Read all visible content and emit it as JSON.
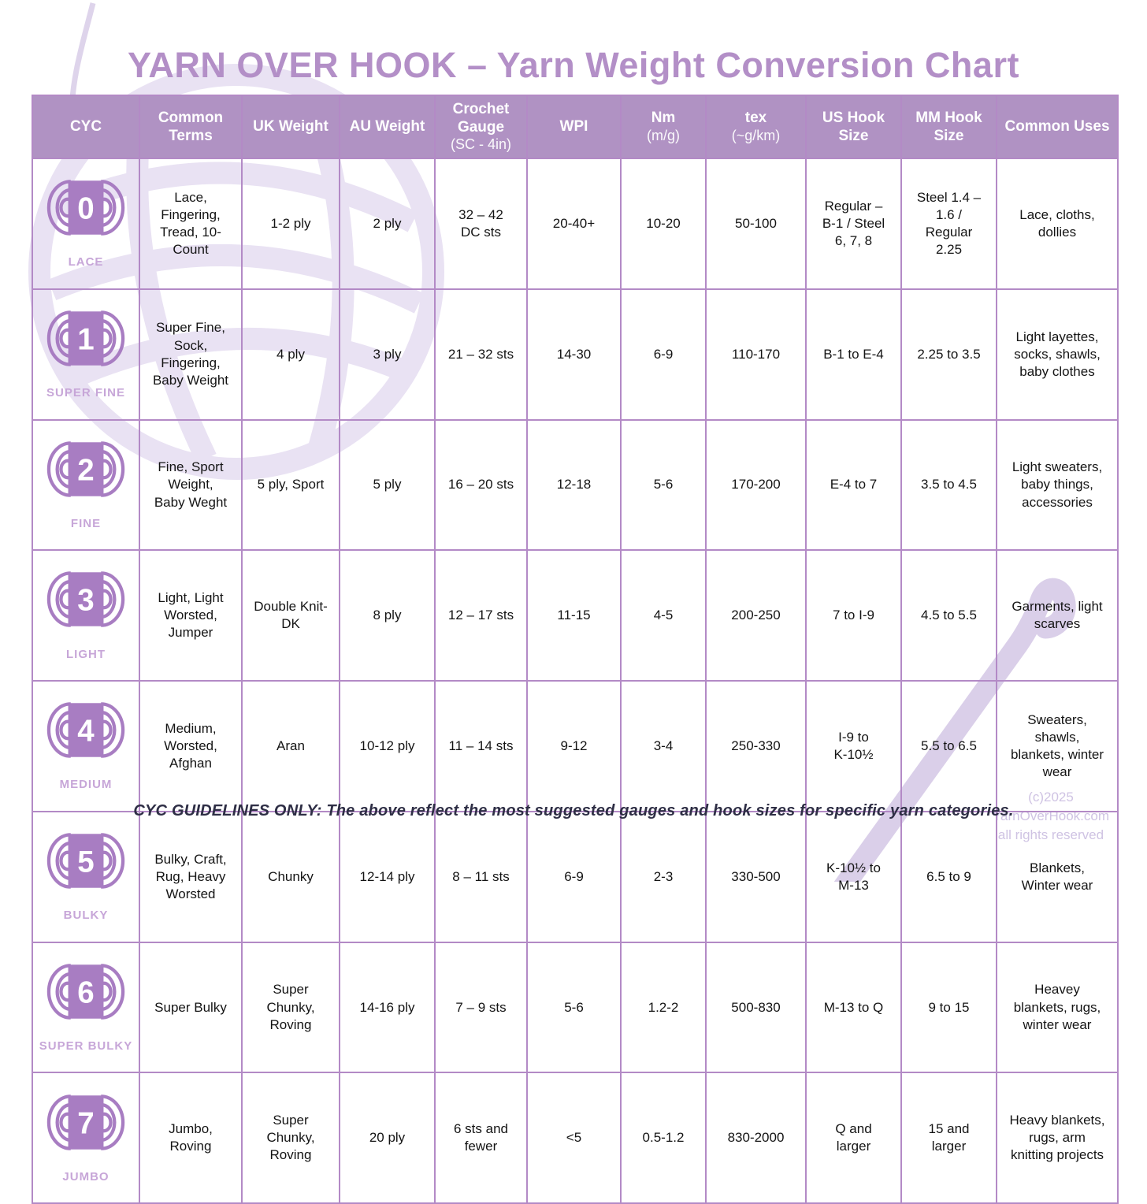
{
  "title": "YARN OVER HOOK – Yarn Weight Conversion Chart",
  "footer_note": "CYC GUIDELINES ONLY: The above reflect the most suggested gauges and hook sizes for specific yarn categories.",
  "copyright": {
    "line1": "(c)2025",
    "line2": "YarnOverHook.com",
    "line3": "all rights reserved"
  },
  "colors": {
    "header_band": "#b092c3",
    "table_border": "#b38ac6",
    "icon_purple": "#a87dc2",
    "title_purple": "#b38fc7",
    "category_label_purple": "#c7a6d8",
    "watermark_lavender": "#e8e1f2",
    "cell_text": "#141414"
  },
  "icons": {
    "row_icon": "yarn-skein-icon",
    "background": [
      "yarn-ball-watermark",
      "yarn-strand-watermark",
      "crochet-hook-watermark"
    ]
  },
  "columns": [
    {
      "label": "CYC",
      "sublabel": ""
    },
    {
      "label": "Common Terms",
      "sublabel": ""
    },
    {
      "label": "UK Weight",
      "sublabel": ""
    },
    {
      "label": "AU Weight",
      "sublabel": ""
    },
    {
      "label": "Crochet Gauge",
      "sublabel": "(SC - 4in)"
    },
    {
      "label": "WPI",
      "sublabel": ""
    },
    {
      "label": "Nm",
      "sublabel": "(m/g)"
    },
    {
      "label": "tex",
      "sublabel": "(~g/km)"
    },
    {
      "label": "US Hook Size",
      "sublabel": ""
    },
    {
      "label": "MM Hook Size",
      "sublabel": ""
    },
    {
      "label": "Common Uses",
      "sublabel": ""
    }
  ],
  "rows": [
    {
      "cyc_number": "0",
      "cyc_label": "LACE",
      "common_terms": "Lace,\nFingering,\nTread, 10-\nCount",
      "uk_weight": "1-2 ply",
      "au_weight": "2 ply",
      "crochet_gauge": "32 – 42\nDC sts",
      "wpi": "20-40+",
      "nm": "10-20",
      "tex": "50-100",
      "us_hook": "Regular –\nB-1 / Steel\n6, 7, 8",
      "mm_hook": "Steel 1.4 –\n1.6 /\nRegular\n2.25",
      "common_uses": "Lace, cloths,\ndollies"
    },
    {
      "cyc_number": "1",
      "cyc_label": "SUPER FINE",
      "common_terms": "Super Fine,\nSock,\nFingering,\nBaby Weight",
      "uk_weight": "4 ply",
      "au_weight": "3 ply",
      "crochet_gauge": "21 – 32 sts",
      "wpi": "14-30",
      "nm": "6-9",
      "tex": "110-170",
      "us_hook": "B-1 to E-4",
      "mm_hook": "2.25 to 3.5",
      "common_uses": "Light layettes,\nsocks, shawls,\nbaby clothes"
    },
    {
      "cyc_number": "2",
      "cyc_label": "FINE",
      "common_terms": "Fine, Sport\nWeight,\nBaby Weght",
      "uk_weight": "5 ply, Sport",
      "au_weight": "5 ply",
      "crochet_gauge": "16 – 20 sts",
      "wpi": "12-18",
      "nm": "5-6",
      "tex": "170-200",
      "us_hook": "E-4 to 7",
      "mm_hook": "3.5 to 4.5",
      "common_uses": "Light sweaters,\nbaby things,\naccessories"
    },
    {
      "cyc_number": "3",
      "cyc_label": "LIGHT",
      "common_terms": "Light, Light\nWorsted,\nJumper",
      "uk_weight": "Double Knit-\nDK",
      "au_weight": "8 ply",
      "crochet_gauge": "12 – 17 sts",
      "wpi": "11-15",
      "nm": "4-5",
      "tex": "200-250",
      "us_hook": "7 to I-9",
      "mm_hook": "4.5 to 5.5",
      "common_uses": "Garments, light\nscarves"
    },
    {
      "cyc_number": "4",
      "cyc_label": "MEDIUM",
      "common_terms": "Medium,\nWorsted,\nAfghan",
      "uk_weight": "Aran",
      "au_weight": "10-12 ply",
      "crochet_gauge": "11 – 14 sts",
      "wpi": "9-12",
      "nm": "3-4",
      "tex": "250-330",
      "us_hook": "I-9 to\nK-10½",
      "mm_hook": "5.5 to 6.5",
      "common_uses": "Sweaters,\nshawls,\nblankets, winter\nwear"
    },
    {
      "cyc_number": "5",
      "cyc_label": "BULKY",
      "common_terms": "Bulky, Craft,\nRug, Heavy\nWorsted",
      "uk_weight": "Chunky",
      "au_weight": "12-14 ply",
      "crochet_gauge": "8 – 11 sts",
      "wpi": "6-9",
      "nm": "2-3",
      "tex": "330-500",
      "us_hook": "K-10½ to\nM-13",
      "mm_hook": "6.5 to 9",
      "common_uses": "Blankets,\nWinter wear"
    },
    {
      "cyc_number": "6",
      "cyc_label": "SUPER BULKY",
      "common_terms": "Super Bulky",
      "uk_weight": "Super\nChunky,\nRoving",
      "au_weight": "14-16 ply",
      "crochet_gauge": "7 – 9 sts",
      "wpi": "5-6",
      "nm": "1.2-2",
      "tex": "500-830",
      "us_hook": "M-13 to Q",
      "mm_hook": "9 to 15",
      "common_uses": "Heavey\nblankets, rugs,\nwinter wear"
    },
    {
      "cyc_number": "7",
      "cyc_label": "JUMBO",
      "common_terms": "Jumbo,\nRoving",
      "uk_weight": "Super\nChunky,\nRoving",
      "au_weight": "20 ply",
      "crochet_gauge": "6 sts and\nfewer",
      "wpi": "<5",
      "nm": "0.5-1.2",
      "tex": "830-2000",
      "us_hook": "Q and\nlarger",
      "mm_hook": "15 and\nlarger",
      "common_uses": "Heavy blankets,\nrugs, arm\nknitting projects"
    }
  ]
}
